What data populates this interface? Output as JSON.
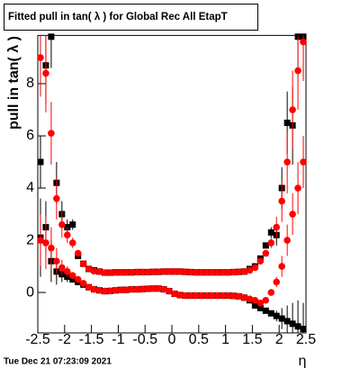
{
  "chart_data": {
    "type": "scatter",
    "title": "Fitted pull in tan( λ ) for Global Rec All EtapT",
    "y_label": "pull in tan( λ )",
    "x_label": "η",
    "annotation": "Tue Dec 21 07:23:09 2021",
    "xlim": [
      -2.5,
      2.5
    ],
    "ylim": [
      -1.55,
      9.85
    ],
    "xticks": [
      -2.5,
      -2,
      -1.5,
      -1,
      -0.5,
      0,
      0.5,
      1,
      1.5,
      2,
      2.5
    ],
    "yticks": [
      0,
      2,
      4,
      6,
      8
    ],
    "x": [
      -2.45,
      -2.35,
      -2.25,
      -2.15,
      -2.05,
      -1.95,
      -1.85,
      -1.75,
      -1.65,
      -1.55,
      -1.45,
      -1.35,
      -1.25,
      -1.15,
      -1.05,
      -0.95,
      -0.85,
      -0.75,
      -0.65,
      -0.55,
      -0.45,
      -0.35,
      -0.25,
      -0.15,
      -0.05,
      0.05,
      0.15,
      0.25,
      0.35,
      0.45,
      0.55,
      0.65,
      0.75,
      0.85,
      0.95,
      1.05,
      1.15,
      1.25,
      1.35,
      1.45,
      1.55,
      1.65,
      1.75,
      1.85,
      1.95,
      2.05,
      2.15,
      2.25,
      2.35,
      2.45
    ],
    "series": [
      {
        "color": "#000000",
        "marker": "square",
        "values": [
          2.1,
          8.7,
          9.8,
          4.2,
          3.0,
          2.5,
          2.6,
          1.4,
          1.1,
          0.9,
          0.85,
          0.8,
          0.76,
          0.76,
          0.77,
          0.77,
          0.77,
          0.77,
          0.78,
          0.78,
          0.78,
          0.79,
          0.79,
          0.8,
          0.8,
          0.8,
          0.8,
          0.79,
          0.78,
          0.77,
          0.77,
          0.77,
          0.77,
          0.77,
          0.77,
          0.77,
          0.78,
          0.79,
          0.8,
          0.9,
          1.0,
          1.3,
          1.8,
          2.3,
          2.2,
          4.0,
          6.5,
          6.4,
          9.8,
          9.8
        ],
        "errors": [
          1.5,
          1.5,
          1.2,
          0.8,
          0.5,
          0.3,
          0.2,
          0.1,
          0.05,
          0.03,
          0.03,
          0.03,
          0.02,
          0.02,
          0.02,
          0.02,
          0.02,
          0.02,
          0.02,
          0.02,
          0.02,
          0.02,
          0.02,
          0.02,
          0.02,
          0.02,
          0.02,
          0.02,
          0.02,
          0.02,
          0.02,
          0.02,
          0.02,
          0.02,
          0.02,
          0.02,
          0.02,
          0.02,
          0.03,
          0.03,
          0.04,
          0.06,
          0.1,
          0.2,
          0.4,
          0.8,
          1.2,
          1.5,
          1.5,
          1.5
        ]
      },
      {
        "color": "#000000",
        "marker": "square",
        "values": [
          5.0,
          2.5,
          1.2,
          0.8,
          0.7,
          0.6,
          0.5,
          0.4,
          0.3,
          0.2,
          0.12,
          0.08,
          0.05,
          0.06,
          0.08,
          0.1,
          0.1,
          0.12,
          0.12,
          0.13,
          0.14,
          0.15,
          0.15,
          0.12,
          0.05,
          -0.05,
          -0.1,
          -0.12,
          -0.12,
          -0.12,
          -0.12,
          -0.12,
          -0.12,
          -0.12,
          -0.12,
          -0.12,
          -0.13,
          -0.15,
          -0.2,
          -0.3,
          -0.5,
          -0.6,
          -0.7,
          -0.8,
          -0.9,
          -1.0,
          -1.1,
          -1.2,
          -1.3,
          -1.4
        ],
        "errors": [
          1.0,
          1.0,
          0.8,
          0.5,
          0.3,
          0.2,
          0.1,
          0.06,
          0.04,
          0.03,
          0.02,
          0.02,
          0.02,
          0.02,
          0.02,
          0.02,
          0.02,
          0.02,
          0.02,
          0.02,
          0.02,
          0.02,
          0.02,
          0.02,
          0.02,
          0.02,
          0.02,
          0.02,
          0.02,
          0.02,
          0.02,
          0.02,
          0.02,
          0.02,
          0.02,
          0.02,
          0.02,
          0.02,
          0.02,
          0.02,
          0.03,
          0.04,
          0.06,
          0.1,
          0.2,
          0.4,
          0.6,
          0.8,
          1.0,
          1.0
        ]
      },
      {
        "color": "#ff0000",
        "marker": "circle",
        "values": [
          9.0,
          8.4,
          6.1,
          3.6,
          2.6,
          2.2,
          1.9,
          1.5,
          1.1,
          0.9,
          0.82,
          0.8,
          0.76,
          0.76,
          0.77,
          0.77,
          0.77,
          0.77,
          0.78,
          0.78,
          0.78,
          0.79,
          0.79,
          0.8,
          0.8,
          0.8,
          0.8,
          0.79,
          0.78,
          0.77,
          0.77,
          0.77,
          0.77,
          0.77,
          0.77,
          0.77,
          0.78,
          0.79,
          0.8,
          0.85,
          0.95,
          1.2,
          1.5,
          1.9,
          2.5,
          3.5,
          5.0,
          7.0,
          8.5,
          9.6
        ],
        "errors": [
          1.5,
          1.5,
          1.2,
          0.8,
          0.5,
          0.3,
          0.2,
          0.1,
          0.05,
          0.03,
          0.03,
          0.03,
          0.02,
          0.02,
          0.02,
          0.02,
          0.02,
          0.02,
          0.02,
          0.02,
          0.02,
          0.02,
          0.02,
          0.02,
          0.02,
          0.02,
          0.02,
          0.02,
          0.02,
          0.02,
          0.02,
          0.02,
          0.02,
          0.02,
          0.02,
          0.02,
          0.02,
          0.02,
          0.03,
          0.03,
          0.04,
          0.06,
          0.1,
          0.2,
          0.4,
          0.8,
          1.2,
          1.5,
          1.5,
          1.5
        ]
      },
      {
        "color": "#ff0000",
        "marker": "circle",
        "values": [
          2.0,
          1.9,
          1.7,
          1.2,
          0.95,
          0.8,
          0.65,
          0.5,
          0.35,
          0.2,
          0.12,
          0.08,
          0.05,
          0.06,
          0.08,
          0.1,
          0.1,
          0.12,
          0.12,
          0.13,
          0.14,
          0.15,
          0.15,
          0.12,
          0.05,
          -0.05,
          -0.1,
          -0.12,
          -0.12,
          -0.12,
          -0.12,
          -0.12,
          -0.12,
          -0.12,
          -0.12,
          -0.12,
          -0.13,
          -0.15,
          -0.2,
          -0.25,
          -0.3,
          -0.4,
          -0.3,
          0.0,
          0.4,
          1.0,
          2.0,
          3.0,
          4.0,
          5.0
        ],
        "errors": [
          1.0,
          1.0,
          0.8,
          0.5,
          0.3,
          0.2,
          0.1,
          0.06,
          0.04,
          0.03,
          0.02,
          0.02,
          0.02,
          0.02,
          0.02,
          0.02,
          0.02,
          0.02,
          0.02,
          0.02,
          0.02,
          0.02,
          0.02,
          0.02,
          0.02,
          0.02,
          0.02,
          0.02,
          0.02,
          0.02,
          0.02,
          0.02,
          0.02,
          0.02,
          0.02,
          0.02,
          0.02,
          0.02,
          0.02,
          0.02,
          0.03,
          0.04,
          0.06,
          0.1,
          0.2,
          0.4,
          0.6,
          0.8,
          1.0,
          1.0
        ]
      }
    ]
  }
}
